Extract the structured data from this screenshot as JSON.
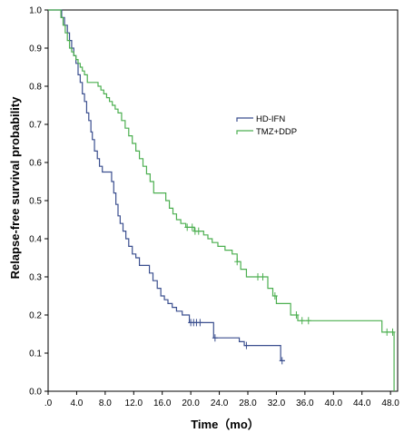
{
  "chart_data": {
    "type": "line",
    "step": "post",
    "title": "",
    "xlabel": "Time（mo）",
    "ylabel": "Relapse-free survival probability",
    "xlim": [
      0,
      49
    ],
    "ylim": [
      0,
      1.0
    ],
    "x_ticks": [
      0,
      4,
      8,
      12,
      16,
      20,
      24,
      28,
      32,
      36,
      40,
      44,
      48
    ],
    "x_tick_labels": [
      ".0",
      "4.0",
      "8.0",
      "12.0",
      "16.0",
      "20.0",
      "24.0",
      "28.0",
      "32.0",
      "36.0",
      "40.0",
      "44.0",
      "48.0"
    ],
    "y_ticks": [
      0,
      0.1,
      0.2,
      0.3,
      0.4,
      0.5,
      0.6,
      0.7,
      0.8,
      0.9,
      1.0
    ],
    "y_tick_labels": [
      "0.0",
      "0.1",
      "0.2",
      "0.3",
      "0.4",
      "0.5",
      "0.6",
      "0.7",
      "0.8",
      "0.9",
      "1.0"
    ],
    "grid": false,
    "legend_position": "upper-right",
    "series": [
      {
        "name": "HD-IFN",
        "color": "#3b4f8f",
        "x": [
          0,
          1.9,
          2.3,
          2.7,
          3.0,
          3.3,
          3.6,
          3.9,
          4.2,
          4.5,
          4.8,
          5.1,
          5.4,
          5.7,
          6.0,
          6.2,
          6.5,
          6.9,
          7.2,
          7.6,
          8.9,
          9.2,
          9.5,
          9.8,
          10.1,
          10.5,
          10.9,
          11.3,
          11.8,
          12.3,
          12.8,
          14.2,
          14.7,
          15.3,
          15.8,
          16.3,
          16.8,
          17.4,
          18.0,
          18.8,
          19.8,
          23.2,
          26.8,
          27.5,
          32.6,
          33.2
        ],
        "y": [
          1.0,
          0.98,
          0.96,
          0.94,
          0.92,
          0.9,
          0.88,
          0.86,
          0.83,
          0.81,
          0.78,
          0.76,
          0.73,
          0.71,
          0.68,
          0.66,
          0.63,
          0.61,
          0.59,
          0.575,
          0.55,
          0.52,
          0.49,
          0.46,
          0.44,
          0.42,
          0.4,
          0.38,
          0.36,
          0.35,
          0.33,
          0.31,
          0.29,
          0.27,
          0.25,
          0.24,
          0.23,
          0.22,
          0.21,
          0.2,
          0.18,
          0.14,
          0.13,
          0.12,
          0.08,
          0.08
        ],
        "censored_x": [
          20.0,
          20.4,
          20.8,
          21.3,
          23.4,
          27.8,
          32.8
        ],
        "end_x": 33.2
      },
      {
        "name": "TMZ+DDP",
        "color": "#4caf50",
        "x": [
          0,
          1.8,
          2.1,
          2.4,
          2.7,
          3.0,
          3.3,
          3.6,
          3.9,
          4.2,
          4.5,
          4.8,
          5.1,
          5.5,
          7.0,
          7.4,
          7.8,
          8.2,
          8.6,
          9.0,
          9.4,
          9.8,
          10.3,
          10.8,
          11.3,
          11.8,
          12.3,
          12.8,
          13.3,
          13.8,
          14.3,
          14.8,
          16.5,
          17.0,
          17.5,
          18.0,
          18.6,
          19.3,
          20.5,
          21.8,
          22.4,
          23.0,
          23.8,
          24.8,
          25.8,
          26.5,
          27.0,
          27.8,
          30.8,
          31.5,
          32.0,
          34.0,
          35.0,
          46.8,
          48.5
        ],
        "y": [
          1.0,
          0.98,
          0.96,
          0.94,
          0.92,
          0.9,
          0.89,
          0.88,
          0.87,
          0.86,
          0.85,
          0.84,
          0.83,
          0.81,
          0.8,
          0.79,
          0.78,
          0.77,
          0.76,
          0.75,
          0.74,
          0.73,
          0.71,
          0.69,
          0.67,
          0.65,
          0.63,
          0.61,
          0.59,
          0.57,
          0.55,
          0.52,
          0.5,
          0.48,
          0.465,
          0.45,
          0.44,
          0.43,
          0.42,
          0.41,
          0.4,
          0.39,
          0.38,
          0.37,
          0.36,
          0.34,
          0.32,
          0.3,
          0.27,
          0.25,
          0.23,
          0.2,
          0.185,
          0.155,
          0.0
        ],
        "censored_x": [
          19.5,
          20.2,
          20.6,
          21.1,
          26.5,
          29.4,
          30.1,
          31.8,
          34.8,
          35.6,
          36.5,
          47.5,
          48.3
        ],
        "end_x": 48.5
      }
    ]
  }
}
